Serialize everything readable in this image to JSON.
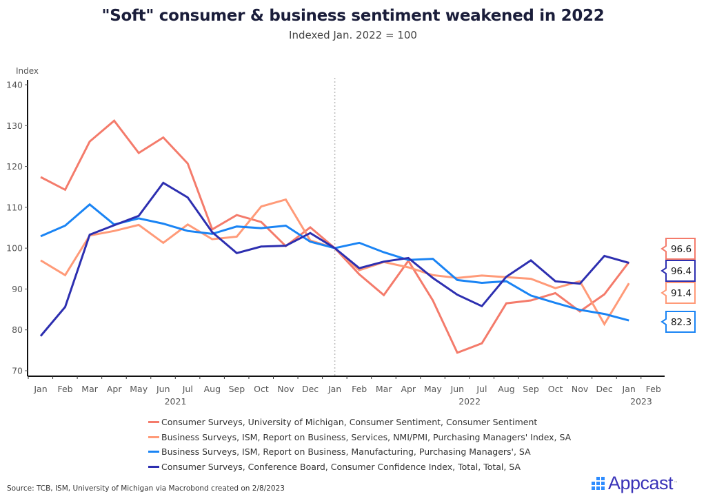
{
  "chart_data": {
    "type": "line",
    "title": "\"Soft\" consumer & business sentiment weakened in 2022",
    "subtitle": "Indexed Jan. 2022 = 100",
    "ylabel": "Index",
    "xlabel": "",
    "ylim": [
      70,
      140
    ],
    "yticks": [
      70,
      80,
      90,
      100,
      110,
      120,
      130,
      140
    ],
    "x": [
      "Jan",
      "Feb",
      "Mar",
      "Apr",
      "May",
      "Jun",
      "Jul",
      "Aug",
      "Sep",
      "Oct",
      "Nov",
      "Dec",
      "Jan",
      "Feb",
      "Mar",
      "Apr",
      "May",
      "Jun",
      "Jul",
      "Aug",
      "Sep",
      "Oct",
      "Nov",
      "Dec",
      "Jan",
      "Feb"
    ],
    "x_year_labels": [
      {
        "label": "2021",
        "under_index": 5.5
      },
      {
        "label": "2022",
        "under_index": 17.5
      },
      {
        "label": "2023",
        "under_index": 24.5
      }
    ],
    "reference_line": {
      "x_index": 12,
      "label": "Jan 2022",
      "style": "dotted"
    },
    "grid": false,
    "legend_position": "bottom",
    "series": [
      {
        "name": "Consumer Surveys, University of Michigan, Consumer Sentiment, Consumer Sentiment",
        "color": "#F47B6B",
        "values": [
          117.4,
          114.3,
          126.1,
          131.2,
          123.3,
          127.1,
          120.7,
          104.6,
          108.1,
          106.4,
          100.5,
          105.1,
          100.0,
          93.6,
          88.5,
          96.9,
          87.2,
          74.4,
          76.7,
          86.5,
          87.2,
          89.0,
          84.5,
          88.7,
          96.6
        ],
        "end_label": "96.6"
      },
      {
        "name": "Business Surveys, ISM, Report on Business, Services, NMI/PMI, Purchasing Managers' Index, SA",
        "color": "#FF9A78",
        "values": [
          97.0,
          93.4,
          103.1,
          104.2,
          105.7,
          101.3,
          105.8,
          102.2,
          102.8,
          110.2,
          111.9,
          101.9,
          100.0,
          94.6,
          96.6,
          95.3,
          93.4,
          92.7,
          93.3,
          92.9,
          92.5,
          90.2,
          91.9,
          81.4,
          91.4
        ],
        "end_label": "91.4"
      },
      {
        "name": "Business Surveys, ISM, Report on Business, Manufacturing, Purchasing Managers', SA",
        "color": "#1A84F4",
        "values": [
          102.9,
          105.5,
          110.7,
          105.8,
          107.3,
          106.0,
          104.2,
          103.5,
          105.3,
          104.9,
          105.5,
          101.6,
          100.0,
          101.3,
          99.0,
          97.1,
          97.4,
          92.2,
          91.5,
          91.9,
          88.4,
          86.6,
          84.9,
          83.9,
          82.3
        ],
        "end_label": "82.3"
      },
      {
        "name": "Consumer Surveys, Conference Board, Consumer Confidence Index, Total, Total, SA",
        "color": "#2D2FB0",
        "values": [
          78.5,
          85.6,
          103.3,
          105.6,
          107.9,
          116.0,
          112.4,
          103.9,
          98.8,
          100.4,
          100.6,
          103.7,
          100.0,
          95.1,
          96.7,
          97.6,
          92.7,
          88.6,
          85.8,
          93.0,
          97.0,
          91.9,
          91.3,
          98.1,
          96.4
        ],
        "end_label": "96.4"
      }
    ]
  },
  "source": "Source: TCB, ISM, University of Michigan via Macrobond created on 2/8/2023",
  "logo": {
    "text": "Appcast",
    "tm": "™"
  }
}
